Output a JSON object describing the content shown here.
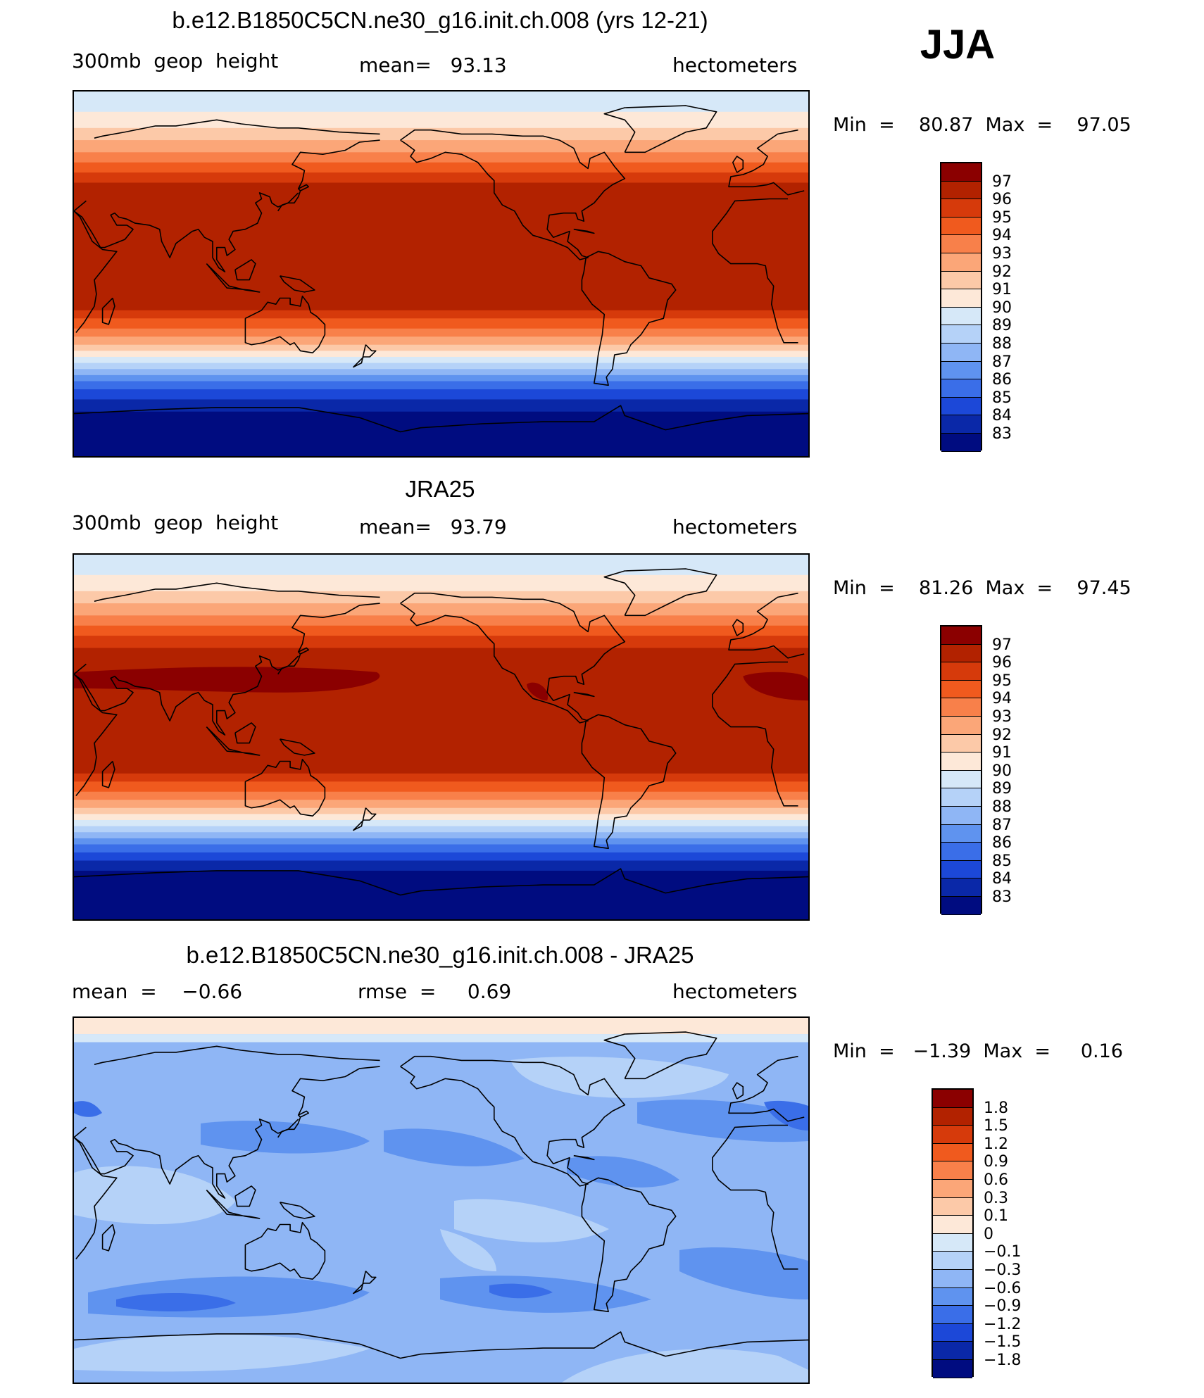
{
  "season": "JJA",
  "panels": [
    {
      "id": "model",
      "title": "b.e12.B1850C5CN.ne30_g16.init.ch.008 (yrs 12-21)",
      "left_label": "300mb  geop  height",
      "center_label": "mean=   93.13",
      "right_label": "hectometers",
      "minmax": "Min  =    80.87  Max  =    97.05",
      "map_type": "zonal-geopotential",
      "colorbar_labels": [
        "97",
        "96",
        "95",
        "94",
        "93",
        "92",
        "91",
        "90",
        "89",
        "88",
        "87",
        "86",
        "85",
        "84",
        "83"
      ]
    },
    {
      "id": "obs",
      "title": "JRA25",
      "left_label": "300mb  geop  height",
      "center_label": "mean=   93.79",
      "right_label": "hectometers",
      "minmax": "Min  =    81.26  Max  =    97.45",
      "map_type": "zonal-geopotential-obs",
      "colorbar_labels": [
        "97",
        "96",
        "95",
        "94",
        "93",
        "92",
        "91",
        "90",
        "89",
        "88",
        "87",
        "86",
        "85",
        "84",
        "83"
      ]
    },
    {
      "id": "diff",
      "title": "b.e12.B1850C5CN.ne30_g16.init.ch.008 - JRA25",
      "left_label": "mean  =    −0.66",
      "center_label": "rmse  =     0.69",
      "right_label": "hectometers",
      "minmax": "Min  =   −1.39  Max  =     0.16",
      "map_type": "difference",
      "colorbar_labels": [
        "1.8",
        "1.5",
        "1.2",
        "0.9",
        "0.6",
        "0.3",
        "0.1",
        "0",
        "−0.1",
        "−0.3",
        "−0.6",
        "−0.9",
        "−1.2",
        "−1.5",
        "−1.8"
      ]
    }
  ],
  "colors": {
    "abs_scale": [
      "#8b0000",
      "#b22200",
      "#d63a0b",
      "#f05a1e",
      "#f8804a",
      "#fba678",
      "#fcc9a8",
      "#fde8d8",
      "#d6e8f8",
      "#b5d2f8",
      "#8fb6f5",
      "#5f93ef",
      "#3a6ee8",
      "#1c48d8",
      "#0a28a8",
      "#000c80"
    ],
    "diff_scale": [
      "#8b0000",
      "#b22200",
      "#d63a0b",
      "#f05a1e",
      "#f8804a",
      "#fba678",
      "#fcc9a8",
      "#fde8d8",
      "#d6e8f8",
      "#b5d2f8",
      "#8fb6f5",
      "#5f93ef",
      "#3a6ee8",
      "#1c48d8",
      "#0a28a8",
      "#000c80"
    ]
  }
}
